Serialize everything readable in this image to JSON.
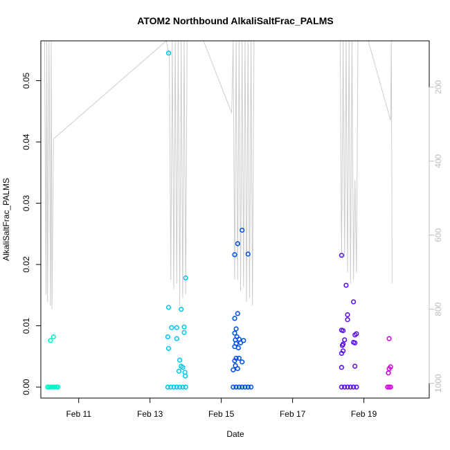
{
  "chart_data": {
    "type": "scatter",
    "title": "ATOM2 Northbound AlkaliSaltFrac_PALMS",
    "xlabel": "Date",
    "ylabel": "AlkaliSaltFrac_PALMS",
    "x_ticks": [
      "Feb 11",
      "Feb 13",
      "Feb 15",
      "Feb 17",
      "Feb 19"
    ],
    "y_ticks": [
      "0.00",
      "0.01",
      "0.02",
      "0.03",
      "0.04",
      "0.05"
    ],
    "y_right_ticks": [
      "200",
      "400",
      "600",
      "800",
      "1000"
    ],
    "xlim": [
      "2017-02-09T22:30",
      "2017-02-20T20:00"
    ],
    "ylim": [
      -0.0018,
      0.0565
    ],
    "y_right_lim": [
      1040,
      75
    ],
    "y_right_reversed": true,
    "grid": false,
    "series": [
      {
        "color": "#00f5c8",
        "points": [
          [
            "2017-02-10T05:00",
            0.0076
          ],
          [
            "2017-02-10T07:00",
            0.0082
          ],
          [
            "2017-02-10T03:00",
            0.0
          ],
          [
            "2017-02-10T04:00",
            0.0
          ],
          [
            "2017-02-10T05:00",
            0.0
          ],
          [
            "2017-02-10T06:00",
            0.0
          ],
          [
            "2017-02-10T07:00",
            0.0
          ],
          [
            "2017-02-10T08:00",
            0.0
          ],
          [
            "2017-02-10T09:00",
            0.0
          ],
          [
            "2017-02-10T10:00",
            0.0
          ]
        ]
      },
      {
        "color": "#00c8f0",
        "points": [
          [
            "2017-02-13T12:30",
            0.0545
          ],
          [
            "2017-02-13T12:30",
            0.013
          ],
          [
            "2017-02-13T21:00",
            0.0127
          ],
          [
            "2017-02-13T14:30",
            0.0097
          ],
          [
            "2017-02-13T18:00",
            0.0097
          ],
          [
            "2017-02-13T23:00",
            0.0098
          ],
          [
            "2017-02-13T12:00",
            0.0082
          ],
          [
            "2017-02-13T18:00",
            0.0079
          ],
          [
            "2017-02-13T23:00",
            0.0089
          ],
          [
            "2017-02-13T12:30",
            0.0063
          ],
          [
            "2017-02-13T20:00",
            0.0044
          ],
          [
            "2017-02-13T21:00",
            0.0034
          ],
          [
            "2017-02-13T22:00",
            0.0032
          ],
          [
            "2017-02-13T19:30",
            0.0026
          ],
          [
            "2017-02-13T23:30",
            0.0024
          ],
          [
            "2017-02-13T23:45",
            0.0018
          ],
          [
            "2017-02-14T00:00",
            0.0178
          ],
          [
            "2017-02-13T12:00",
            0.0
          ],
          [
            "2017-02-13T14:00",
            0.0
          ],
          [
            "2017-02-13T16:00",
            0.0
          ],
          [
            "2017-02-13T18:00",
            0.0
          ],
          [
            "2017-02-13T20:00",
            0.0
          ],
          [
            "2017-02-13T22:00",
            0.0
          ],
          [
            "2017-02-14T00:00",
            0.0
          ]
        ]
      },
      {
        "color": "#0050e8",
        "points": [
          [
            "2017-02-15T14:00",
            0.0256
          ],
          [
            "2017-02-15T11:00",
            0.0234
          ],
          [
            "2017-02-15T09:00",
            0.0216
          ],
          [
            "2017-02-15T18:00",
            0.0217
          ],
          [
            "2017-02-15T11:00",
            0.012
          ],
          [
            "2017-02-15T09:00",
            0.0112
          ],
          [
            "2017-02-15T10:00",
            0.0095
          ],
          [
            "2017-02-15T09:00",
            0.0088
          ],
          [
            "2017-02-15T10:30",
            0.0082
          ],
          [
            "2017-02-15T09:30",
            0.0077
          ],
          [
            "2017-02-15T12:00",
            0.0078
          ],
          [
            "2017-02-15T15:00",
            0.0076
          ],
          [
            "2017-02-15T10:00",
            0.0071
          ],
          [
            "2017-02-15T09:00",
            0.0066
          ],
          [
            "2017-02-15T11:30",
            0.0064
          ],
          [
            "2017-02-15T13:00",
            0.0072
          ],
          [
            "2017-02-15T10:00",
            0.0047
          ],
          [
            "2017-02-15T12:00",
            0.0047
          ],
          [
            "2017-02-15T09:00",
            0.0043
          ],
          [
            "2017-02-15T14:00",
            0.0041
          ],
          [
            "2017-02-15T09:30",
            0.0035
          ],
          [
            "2017-02-15T08:00",
            0.0028
          ],
          [
            "2017-02-15T11:00",
            0.003
          ],
          [
            "2017-02-15T08:00",
            0.0
          ],
          [
            "2017-02-15T10:00",
            0.0
          ],
          [
            "2017-02-15T12:00",
            0.0
          ],
          [
            "2017-02-15T14:00",
            0.0
          ],
          [
            "2017-02-15T16:00",
            0.0
          ],
          [
            "2017-02-15T18:00",
            0.0
          ],
          [
            "2017-02-15T20:00",
            0.0
          ]
        ]
      },
      {
        "color": "#5a10e8",
        "points": [
          [
            "2017-02-18T09:00",
            0.0215
          ],
          [
            "2017-02-18T12:00",
            0.0166
          ],
          [
            "2017-02-18T17:00",
            0.0139
          ],
          [
            "2017-02-18T13:00",
            0.0118
          ],
          [
            "2017-02-18T13:00",
            0.011
          ],
          [
            "2017-02-18T09:00",
            0.0093
          ],
          [
            "2017-02-18T10:00",
            0.0092
          ],
          [
            "2017-02-18T19:00",
            0.0087
          ],
          [
            "2017-02-18T18:00",
            0.0085
          ],
          [
            "2017-02-18T11:00",
            0.0077
          ],
          [
            "2017-02-18T17:00",
            0.0073
          ],
          [
            "2017-02-18T10:00",
            0.007
          ],
          [
            "2017-02-18T09:30",
            0.0068
          ],
          [
            "2017-02-18T18:00",
            0.0072
          ],
          [
            "2017-02-18T10:00",
            0.0059
          ],
          [
            "2017-02-18T09:00",
            0.0055
          ],
          [
            "2017-02-18T18:00",
            0.0034
          ],
          [
            "2017-02-18T09:00",
            0.0032
          ],
          [
            "2017-02-18T09:00",
            0.0
          ],
          [
            "2017-02-18T11:00",
            0.0
          ],
          [
            "2017-02-18T13:00",
            0.0
          ],
          [
            "2017-02-18T15:00",
            0.0
          ],
          [
            "2017-02-18T17:00",
            0.0
          ],
          [
            "2017-02-18T19:00",
            0.0
          ]
        ]
      },
      {
        "color": "#d000e0",
        "points": [
          [
            "2017-02-19T17:00",
            0.0079
          ],
          [
            "2017-02-19T18:00",
            0.0033
          ],
          [
            "2017-02-19T17:00",
            0.003
          ],
          [
            "2017-02-19T16:30",
            0.0023
          ],
          [
            "2017-02-19T16:00",
            0.0
          ],
          [
            "2017-02-19T17:00",
            0.0
          ],
          [
            "2017-02-19T18:00",
            0.0
          ]
        ]
      }
    ],
    "altitude": {
      "color": "#cccccc",
      "points": [
        [
          "2017-02-10T01:00",
          70
        ],
        [
          "2017-02-10T02:00",
          760
        ],
        [
          "2017-02-10T02:30",
          70
        ],
        [
          "2017-02-10T03:00",
          780
        ],
        [
          "2017-02-10T04:00",
          70
        ],
        [
          "2017-02-10T05:00",
          790
        ],
        [
          "2017-02-10T05:30",
          70
        ],
        [
          "2017-02-10T06:00",
          800
        ],
        [
          "2017-02-10T07:00",
          340
        ],
        [
          "2017-02-13T11:00",
          75
        ],
        [
          "2017-02-13T13:00",
          120
        ],
        [
          "2017-02-13T14:00",
          720
        ],
        [
          "2017-02-13T15:00",
          75
        ],
        [
          "2017-02-13T16:00",
          745
        ],
        [
          "2017-02-13T17:00",
          75
        ],
        [
          "2017-02-13T18:00",
          730
        ],
        [
          "2017-02-13T19:00",
          75
        ],
        [
          "2017-02-13T20:00",
          790
        ],
        [
          "2017-02-13T21:00",
          75
        ],
        [
          "2017-02-13T22:00",
          770
        ],
        [
          "2017-02-13T23:00",
          75
        ],
        [
          "2017-02-14T00:00",
          760
        ],
        [
          "2017-02-14T01:00",
          70
        ],
        [
          "2017-02-14T12:00",
          75
        ],
        [
          "2017-02-15T07:00",
          270
        ],
        [
          "2017-02-15T08:00",
          70
        ],
        [
          "2017-02-15T09:00",
          720
        ],
        [
          "2017-02-15T10:00",
          70
        ],
        [
          "2017-02-15T11:00",
          720
        ],
        [
          "2017-02-15T12:00",
          70
        ],
        [
          "2017-02-15T13:00",
          750
        ],
        [
          "2017-02-15T14:00",
          70
        ],
        [
          "2017-02-15T15:00",
          740
        ],
        [
          "2017-02-15T16:00",
          70
        ],
        [
          "2017-02-15T17:00",
          780
        ],
        [
          "2017-02-15T18:00",
          70
        ],
        [
          "2017-02-15T19:00",
          770
        ],
        [
          "2017-02-15T20:00",
          70
        ],
        [
          "2017-02-15T21:00",
          790
        ],
        [
          "2017-02-15T22:00",
          75
        ],
        [
          "2017-02-18T08:00",
          75
        ],
        [
          "2017-02-18T09:00",
          660
        ],
        [
          "2017-02-18T10:00",
          75
        ],
        [
          "2017-02-18T11:00",
          660
        ],
        [
          "2017-02-18T12:00",
          75
        ],
        [
          "2017-02-18T13:00",
          700
        ],
        [
          "2017-02-18T14:00",
          75
        ],
        [
          "2017-02-18T15:00",
          730
        ],
        [
          "2017-02-18T16:00",
          75
        ],
        [
          "2017-02-18T17:00",
          720
        ],
        [
          "2017-02-18T18:00",
          450
        ],
        [
          "2017-02-18T19:00",
          700
        ],
        [
          "2017-02-18T20:00",
          75
        ],
        [
          "2017-02-19T03:00",
          75
        ],
        [
          "2017-02-19T18:00",
          290
        ],
        [
          "2017-02-19T18:30",
          75
        ],
        [
          "2017-02-19T19:00",
          730
        ]
      ]
    }
  }
}
